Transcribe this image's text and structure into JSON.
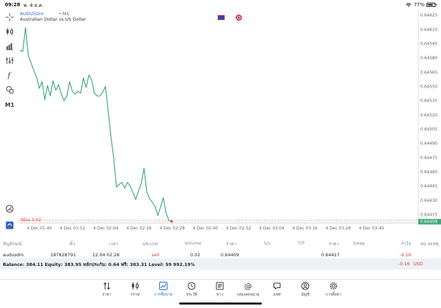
{
  "status_bar": {
    "time": "09:28",
    "date": "พ. 4 ธ.ค.",
    "battery_pct": "77%",
    "battery_level": 0.77
  },
  "chart": {
    "symbol": "AUDUSDm",
    "separator": "•",
    "timeframe": "M1",
    "description": "Australian Dollar vs US Dollar",
    "toolbar_timeframe": "M1",
    "sell_label": "SELL 0.02",
    "current_price": "0.64408",
    "colors": {
      "line": "#3fa87a",
      "sell": "#d9342b",
      "price_tag": "#3fa87a",
      "grid": "#e4e4e4"
    }
  },
  "chart_data": {
    "type": "line",
    "y_ticks": [
      "0.64625",
      "0.64610",
      "0.64595",
      "0.64580",
      "0.64565",
      "0.64550",
      "0.64535",
      "0.64520",
      "0.64505",
      "0.64490",
      "0.64475",
      "0.64460",
      "0.64445",
      "0.64430",
      "0.64415"
    ],
    "x_ticks": [
      "4 Dec 01:40",
      "4 Dec 01:52",
      "4 Dec 02:04",
      "4 Dec 02:16",
      "4 Dec 02:28",
      "4 Dec 02:40",
      "4 Dec 02:52",
      "4 Dec 03:04",
      "4 Dec 03:16",
      "4 Dec 03:28",
      "4 Dec 03:40"
    ],
    "ylim": [
      0.64406,
      0.64628
    ],
    "x": [
      0,
      1,
      2,
      3,
      4,
      5,
      6,
      7,
      8,
      9,
      10,
      11,
      12,
      13,
      14,
      15,
      16,
      17,
      18,
      19,
      20,
      21,
      22,
      23,
      24,
      25,
      26,
      27,
      28,
      29,
      30,
      31,
      32,
      33,
      34,
      35,
      36,
      37,
      38,
      39,
      40,
      41,
      42,
      43,
      44,
      45,
      46,
      47,
      48,
      49,
      50,
      51,
      52,
      53,
      54,
      55
    ],
    "values": [
      0.64588,
      0.64587,
      0.64612,
      0.64583,
      0.64575,
      0.64567,
      0.6456,
      0.64548,
      0.64555,
      0.64536,
      0.64551,
      0.6454,
      0.64556,
      0.64546,
      0.64552,
      0.64542,
      0.64535,
      0.6454,
      0.64555,
      0.64545,
      0.64542,
      0.64545,
      0.64543,
      0.64559,
      0.64549,
      0.64562,
      0.64557,
      0.64543,
      0.6454,
      0.6454,
      0.64544,
      0.6455,
      0.64524,
      0.64497,
      0.64475,
      0.64444,
      0.64447,
      0.64449,
      0.64443,
      0.64449,
      0.64445,
      0.64438,
      0.64431,
      0.6444,
      0.64448,
      0.64464,
      0.64439,
      0.64432,
      0.64428,
      0.64424,
      0.64414,
      0.64423,
      0.64433,
      0.64417,
      0.64409,
      0.64408
    ],
    "grid": true,
    "current_price": 0.64408,
    "sell_marker_x": 55
  },
  "positions": {
    "headers": [
      "สัญลักษณ์",
      "ตั๋ว",
      "เวลา",
      "ประเภท",
      "Volume",
      "ราคา",
      "S/L",
      "T/P",
      "ราคา",
      "Swap",
      "กำไร",
      "หมายเหตุ"
    ],
    "row": {
      "symbol": "audusdm",
      "ticket": "187828791",
      "time": "12.04 02:28",
      "type": "sell",
      "volume": "0.02",
      "open_price": "0.64409",
      "sl": "",
      "tp": "",
      "price": "0.64417",
      "swap": "",
      "profit": "-0.16",
      "comment": ""
    },
    "balance_text": "Balance: 384.11 Equity: 383.95 หลักประกัน: 0.64 ฟรี: 383.31 Level: 59 992.19%",
    "total_profit": "-0.16",
    "currency": "USD"
  },
  "nav": [
    {
      "label": "ราคา",
      "icon": "quotes-icon"
    },
    {
      "label": "กราฟ",
      "icon": "chart-icon"
    },
    {
      "label": "การซื้อขาย",
      "icon": "trade-icon",
      "active": true
    },
    {
      "label": "ประวัติ",
      "icon": "history-icon"
    },
    {
      "label": "ข่าว",
      "icon": "news-icon"
    },
    {
      "label": "กล่องจดหมาย",
      "icon": "mailbox-icon"
    },
    {
      "label": "แชท",
      "icon": "chat-icon"
    },
    {
      "label": "บัญชี",
      "icon": "account-icon"
    },
    {
      "label": "การตั้งค่า",
      "icon": "settings-icon"
    }
  ]
}
